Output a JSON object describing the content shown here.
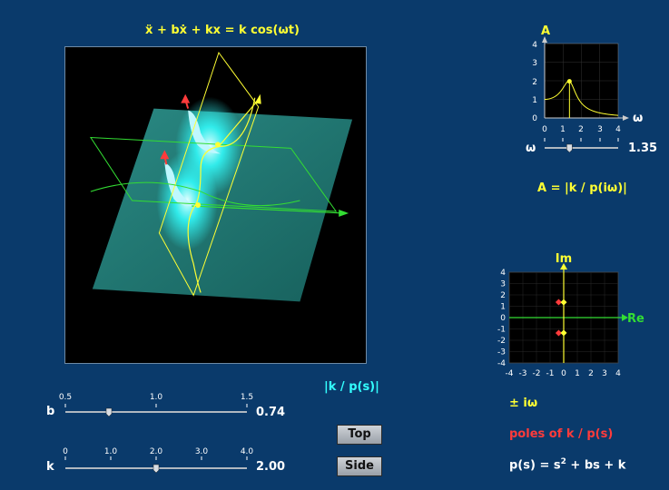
{
  "equation": "ẍ + bẋ + kx = k cos(ωt)",
  "surface_label": "|k / p(s)|",
  "amp": {
    "y_axis_label": "A",
    "x_axis_label": "ω",
    "y_ticks": [
      "4",
      "3",
      "2",
      "1",
      "0"
    ],
    "x_ticks": [
      "0",
      "1",
      "2",
      "3",
      "4"
    ],
    "formula": "A = |k / p(iω)|"
  },
  "omega_slider": {
    "label": "ω",
    "value": "1.35",
    "fraction": 0.3375
  },
  "b_slider": {
    "label": "b",
    "value": "0.74",
    "ticks": [
      "0.5",
      "1.0",
      "1.5"
    ],
    "fraction": 0.24
  },
  "k_slider": {
    "label": "k",
    "value": "2.00",
    "ticks": [
      "0",
      "1.0",
      "2.0",
      "3.0",
      "4.0"
    ],
    "fraction": 0.5
  },
  "buttons": {
    "top": "Top",
    "side": "Side"
  },
  "pole_plot": {
    "y_axis_label": "Im",
    "x_axis_label": "Re",
    "y_ticks": [
      "4",
      "3",
      "2",
      "1",
      "0",
      "-1",
      "-2",
      "-3",
      "-4"
    ],
    "x_ticks": [
      "-4",
      "-3",
      "-2",
      "-1",
      "0",
      "1",
      "2",
      "3",
      "4"
    ],
    "poles": [
      {
        "re": -0.37,
        "im": 1.36
      },
      {
        "re": -0.37,
        "im": -1.36
      }
    ],
    "i_omega": [
      {
        "re": 0,
        "im": 1.35
      },
      {
        "re": 0,
        "im": -1.35
      }
    ]
  },
  "legend": {
    "i_omega": "± iω",
    "poles": "poles of k / p(s)",
    "poly_prefix": "p(s) = s",
    "poly_exp": "2",
    "poly_suffix": " + bs + k"
  },
  "colors": {
    "background": "#0a3a6b",
    "yellow": "#ffff33",
    "cyan": "#33ffff",
    "red": "#ff3b3b",
    "green": "#33dd33",
    "surface": "#1f6f6a"
  }
}
